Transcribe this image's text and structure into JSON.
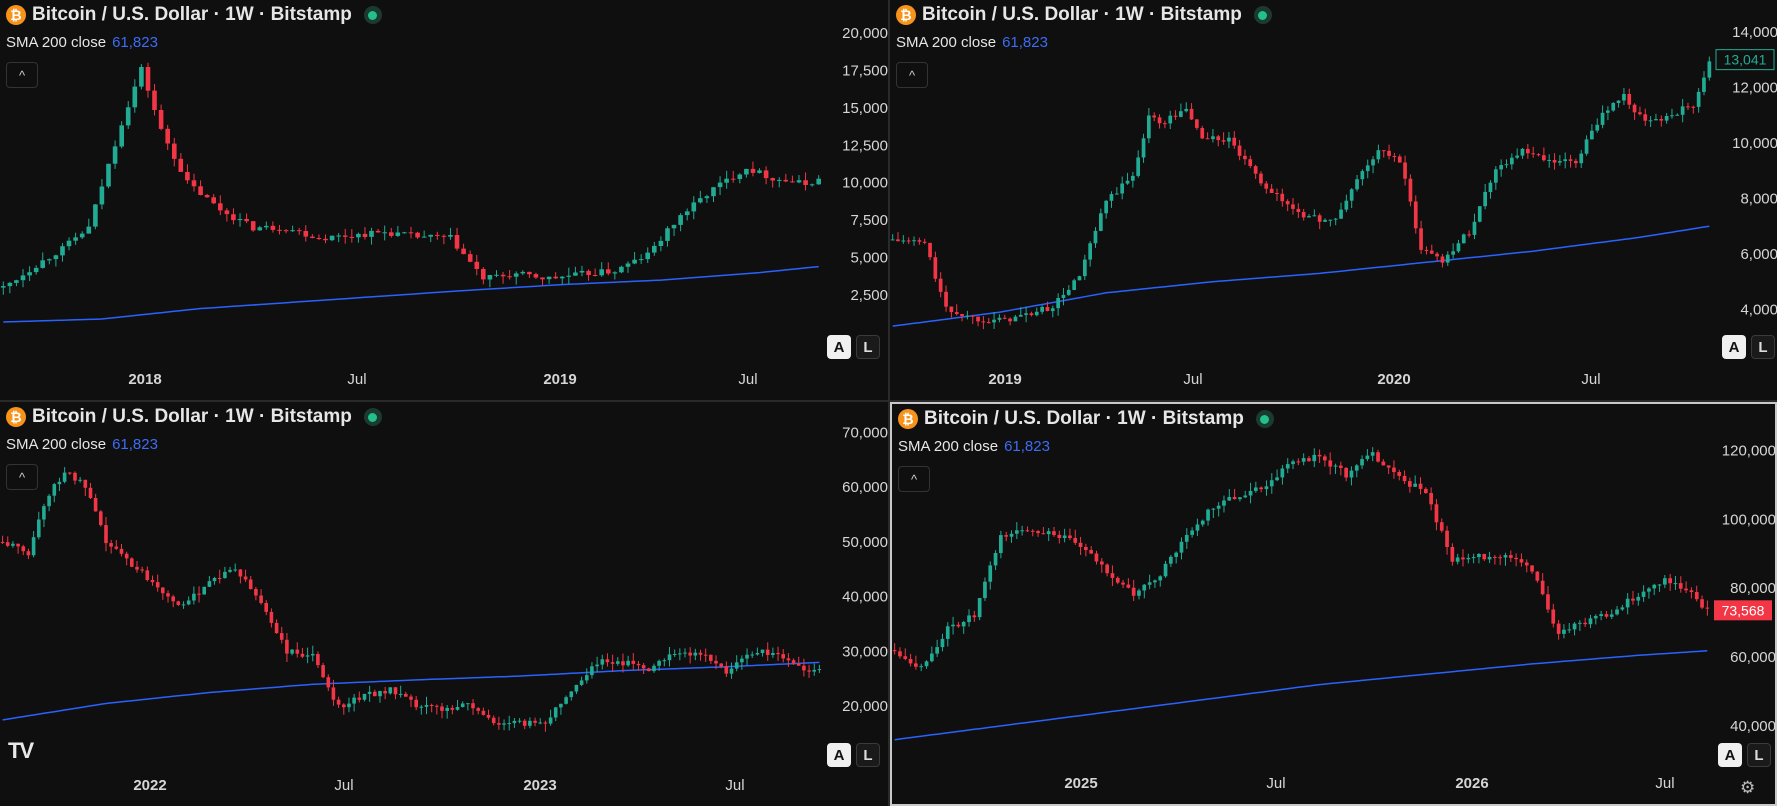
{
  "panes": [
    {
      "id": "p1",
      "legend": {
        "symbol_title": "Bitcoin / U.S. Dollar · 1W · Bitstamp",
        "coin_glyph": "₿"
      },
      "indicator": {
        "label": "SMA 200 close",
        "value": "61,823"
      },
      "collapse_glyph": "^",
      "price_axis": [
        "20,000",
        "17,500",
        "15,000",
        "12,500",
        "10,000",
        "7,500",
        "5,000",
        "2,500"
      ],
      "time_axis": [
        "2018",
        "Jul",
        "2019",
        "Jul"
      ],
      "scale_buttons": {
        "auto": "A",
        "log": "L"
      },
      "chart_data": {
        "type": "candlestick",
        "y_axis_values": [
          20000,
          17500,
          15000,
          12500,
          10000,
          7500,
          5000,
          2500
        ],
        "ylim": [
          -500,
          21000
        ],
        "close_path": [
          [
            0,
            3000
          ],
          [
            5,
            4500
          ],
          [
            9,
            5600
          ],
          [
            13,
            7000
          ],
          [
            18,
            14000
          ],
          [
            21,
            17600
          ],
          [
            24,
            13500
          ],
          [
            28,
            10000
          ],
          [
            33,
            8200
          ],
          [
            38,
            7000
          ],
          [
            43,
            7000
          ],
          [
            48,
            6300
          ],
          [
            53,
            6500
          ],
          [
            58,
            6700
          ],
          [
            63,
            6400
          ],
          [
            68,
            6300
          ],
          [
            73,
            3600
          ],
          [
            78,
            3900
          ],
          [
            83,
            3600
          ],
          [
            88,
            3900
          ],
          [
            93,
            4100
          ],
          [
            98,
            5200
          ],
          [
            103,
            7800
          ],
          [
            108,
            9600
          ],
          [
            113,
            11000
          ],
          [
            117,
            10300
          ],
          [
            122,
            9900
          ],
          [
            124,
            10200
          ]
        ],
        "sma_path": [
          [
            0,
            700
          ],
          [
            15,
            900
          ],
          [
            30,
            1600
          ],
          [
            50,
            2200
          ],
          [
            70,
            2800
          ],
          [
            85,
            3200
          ],
          [
            100,
            3500
          ],
          [
            115,
            4000
          ],
          [
            124,
            4400
          ]
        ],
        "colors": {
          "up": "#22ab94",
          "down": "#f23645",
          "sma": "#2962ff"
        }
      }
    },
    {
      "id": "p2",
      "legend": {
        "symbol_title": "Bitcoin / U.S. Dollar · 1W · Bitstamp",
        "coin_glyph": "₿"
      },
      "indicator": {
        "label": "SMA 200 close",
        "value": "61,823"
      },
      "collapse_glyph": "^",
      "price_axis": [
        "14,000",
        "12,000",
        "10,000",
        "8,000",
        "6,000",
        "4,000"
      ],
      "price_tag": "13,041",
      "time_axis": [
        "2019",
        "Jul",
        "2020",
        "Jul"
      ],
      "scale_buttons": {
        "auto": "A",
        "log": "L"
      },
      "chart_data": {
        "type": "candlestick",
        "y_axis_values": [
          14000,
          12000,
          10000,
          8000,
          6000,
          4000
        ],
        "ylim": [
          2900,
          14500
        ],
        "close_path": [
          [
            0,
            6500
          ],
          [
            6,
            6400
          ],
          [
            10,
            4000
          ],
          [
            15,
            3700
          ],
          [
            20,
            3600
          ],
          [
            25,
            3800
          ],
          [
            30,
            4100
          ],
          [
            35,
            5200
          ],
          [
            40,
            7900
          ],
          [
            45,
            8800
          ],
          [
            48,
            11000
          ],
          [
            50,
            10700
          ],
          [
            55,
            11200
          ],
          [
            58,
            10200
          ],
          [
            63,
            10100
          ],
          [
            68,
            8800
          ],
          [
            73,
            7900
          ],
          [
            78,
            7300
          ],
          [
            83,
            7200
          ],
          [
            87,
            8700
          ],
          [
            91,
            9700
          ],
          [
            95,
            9400
          ],
          [
            99,
            6200
          ],
          [
            103,
            5800
          ],
          [
            108,
            6800
          ],
          [
            113,
            9100
          ],
          [
            118,
            9700
          ],
          [
            123,
            9300
          ],
          [
            128,
            9300
          ],
          [
            133,
            11100
          ],
          [
            137,
            11700
          ],
          [
            141,
            10700
          ],
          [
            146,
            11000
          ],
          [
            150,
            11400
          ],
          [
            153,
            13000
          ]
        ],
        "sma_path": [
          [
            0,
            3400
          ],
          [
            20,
            3900
          ],
          [
            40,
            4600
          ],
          [
            60,
            5000
          ],
          [
            80,
            5300
          ],
          [
            100,
            5700
          ],
          [
            120,
            6100
          ],
          [
            140,
            6600
          ],
          [
            153,
            7000
          ]
        ],
        "colors": {
          "up": "#22ab94",
          "down": "#f23645",
          "sma": "#2962ff"
        }
      }
    },
    {
      "id": "p3",
      "legend": {
        "symbol_title": "Bitcoin / U.S. Dollar · 1W · Bitstamp",
        "coin_glyph": "₿"
      },
      "indicator": {
        "label": "SMA 200 close",
        "value": "61,823"
      },
      "collapse_glyph": "^",
      "price_axis": [
        "70,000",
        "60,000",
        "50,000",
        "40,000",
        "30,000",
        "20,000"
      ],
      "time_axis": [
        "2022",
        "Jul",
        "2023",
        "Jul"
      ],
      "scale_buttons": {
        "auto": "A",
        "log": "L"
      },
      "chart_data": {
        "type": "candlestick",
        "y_axis_values": [
          70000,
          60000,
          50000,
          40000,
          30000,
          20000
        ],
        "ylim": [
          12000,
          73000
        ],
        "close_path": [
          [
            0,
            50000
          ],
          [
            5,
            48000
          ],
          [
            8,
            57000
          ],
          [
            12,
            63000
          ],
          [
            16,
            60000
          ],
          [
            20,
            50000
          ],
          [
            25,
            46000
          ],
          [
            30,
            42000
          ],
          [
            35,
            38000
          ],
          [
            40,
            43000
          ],
          [
            45,
            45000
          ],
          [
            50,
            39000
          ],
          [
            55,
            30000
          ],
          [
            60,
            29000
          ],
          [
            65,
            20000
          ],
          [
            70,
            22000
          ],
          [
            75,
            23000
          ],
          [
            80,
            20000
          ],
          [
            85,
            19500
          ],
          [
            90,
            20500
          ],
          [
            95,
            17000
          ],
          [
            100,
            16800
          ],
          [
            105,
            17200
          ],
          [
            110,
            23000
          ],
          [
            115,
            28000
          ],
          [
            120,
            28000
          ],
          [
            125,
            27000
          ],
          [
            130,
            30000
          ],
          [
            135,
            29500
          ],
          [
            140,
            26500
          ],
          [
            145,
            30000
          ],
          [
            150,
            29500
          ],
          [
            155,
            26500
          ],
          [
            158,
            26500
          ]
        ],
        "sma_path": [
          [
            0,
            17500
          ],
          [
            20,
            20500
          ],
          [
            40,
            22500
          ],
          [
            60,
            24000
          ],
          [
            80,
            24800
          ],
          [
            100,
            25500
          ],
          [
            120,
            26500
          ],
          [
            140,
            27200
          ],
          [
            158,
            28000
          ]
        ],
        "colors": {
          "up": "#22ab94",
          "down": "#f23645",
          "sma": "#2962ff"
        }
      }
    },
    {
      "id": "p4",
      "legend": {
        "symbol_title": "Bitcoin / U.S. Dollar · 1W · Bitstamp",
        "coin_glyph": "₿"
      },
      "indicator": {
        "label": "SMA 200 close",
        "value": "61,823"
      },
      "collapse_glyph": "^",
      "price_axis": [
        "120,000",
        "100,000",
        "80,000",
        "60,000",
        "40,000"
      ],
      "price_tag": "73,568",
      "time_axis": [
        "2025",
        "Jul",
        "2026",
        "Jul"
      ],
      "scale_buttons": {
        "auto": "A",
        "log": "L"
      },
      "chart_data": {
        "type": "candlestick",
        "y_axis_values": [
          120000,
          100000,
          80000,
          60000,
          40000
        ],
        "ylim": [
          33000,
          130000
        ],
        "close_path": [
          [
            0,
            62000
          ],
          [
            5,
            57000
          ],
          [
            10,
            68000
          ],
          [
            15,
            72000
          ],
          [
            20,
            95000
          ],
          [
            25,
            97000
          ],
          [
            30,
            96000
          ],
          [
            35,
            92000
          ],
          [
            40,
            85000
          ],
          [
            45,
            78000
          ],
          [
            50,
            84000
          ],
          [
            55,
            95000
          ],
          [
            60,
            104000
          ],
          [
            65,
            107000
          ],
          [
            70,
            110000
          ],
          [
            75,
            117000
          ],
          [
            80,
            118000
          ],
          [
            85,
            113000
          ],
          [
            90,
            119000
          ],
          [
            95,
            112000
          ],
          [
            100,
            108000
          ],
          [
            105,
            88000
          ],
          [
            110,
            89000
          ],
          [
            115,
            90000
          ],
          [
            120,
            85000
          ],
          [
            125,
            67000
          ],
          [
            130,
            70000
          ],
          [
            135,
            73000
          ],
          [
            140,
            78000
          ],
          [
            145,
            83000
          ],
          [
            150,
            78000
          ],
          [
            153,
            73568
          ]
        ],
        "sma_path": [
          [
            0,
            36000
          ],
          [
            20,
            40000
          ],
          [
            40,
            44000
          ],
          [
            60,
            48000
          ],
          [
            80,
            52000
          ],
          [
            100,
            55000
          ],
          [
            120,
            58000
          ],
          [
            140,
            60500
          ],
          [
            153,
            61823
          ]
        ],
        "colors": {
          "up": "#22ab94",
          "down": "#f23645",
          "sma": "#2962ff"
        }
      }
    }
  ],
  "brand": {
    "logo": "TV"
  },
  "settings_glyph": "⚙"
}
